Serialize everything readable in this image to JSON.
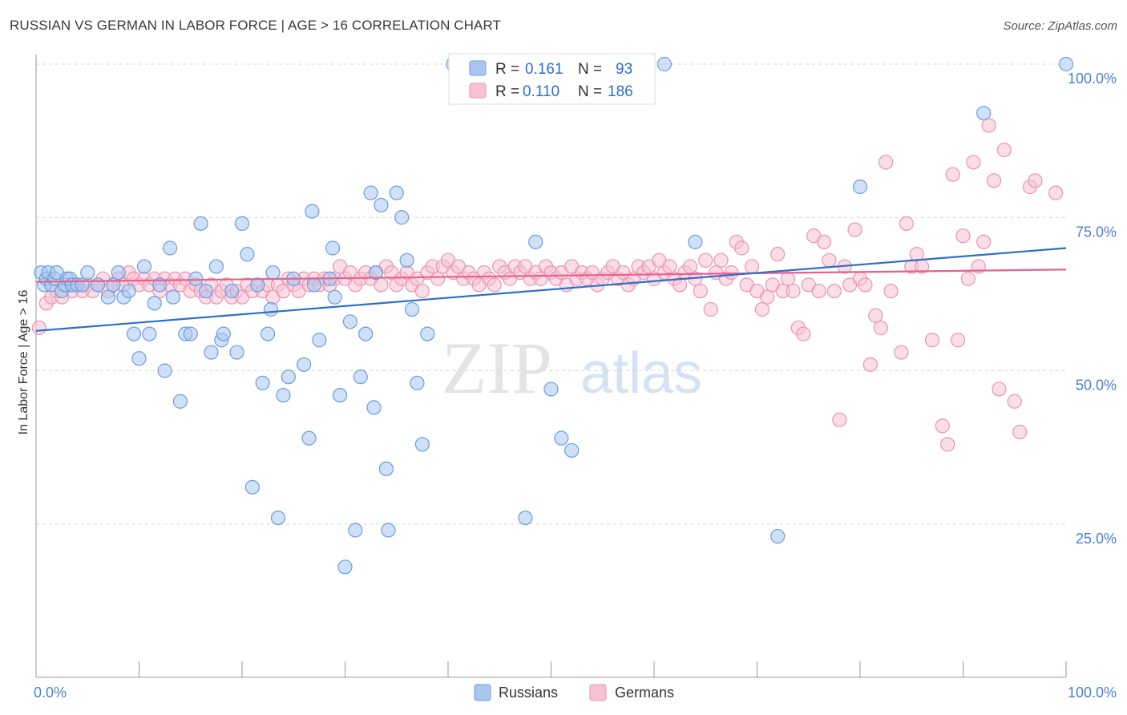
{
  "header": {
    "title": "RUSSIAN VS GERMAN IN LABOR FORCE | AGE > 16 CORRELATION CHART",
    "source": "Source: ZipAtlas.com"
  },
  "watermark": {
    "zip": "ZIP",
    "atlas": "atlas"
  },
  "legend_top": {
    "rows": [
      {
        "r_label": "R =",
        "r_value": "0.161",
        "n_label": "N =",
        "n_value": "93"
      },
      {
        "r_label": "R =",
        "r_value": "0.110",
        "n_label": "N =",
        "n_value": "186"
      }
    ]
  },
  "legend_bottom": {
    "items": [
      "Russians",
      "Germans"
    ]
  },
  "colors": {
    "russians_fill": "#aac6ee",
    "russians_stroke": "#6a9ee0",
    "russians_line": "#2d6fcc",
    "germans_fill": "#f6c3d3",
    "germans_stroke": "#eb93b2",
    "germans_line": "#e8608e",
    "tick_text": "#4a7fd4",
    "grid": "#d8d8d8"
  },
  "chart_data": {
    "type": "scatter",
    "title": "RUSSIAN VS GERMAN IN LABOR FORCE | AGE > 16 CORRELATION CHART",
    "ylabel": "In Labor Force | Age > 16",
    "xlim": [
      0,
      100
    ],
    "ylim": [
      0,
      100
    ],
    "x_tick_labels": [
      "0.0%",
      "100.0%"
    ],
    "y_ticks": [
      25,
      50,
      75,
      100
    ],
    "y_tick_labels": [
      "25.0%",
      "50.0%",
      "75.0%",
      "100.0%"
    ],
    "grid": "horizontal dashed",
    "legend": "top-center and bottom-center",
    "series": [
      {
        "name": "Russians",
        "r": 0.161,
        "n": 93,
        "trend": [
          [
            0,
            56.5
          ],
          [
            100,
            70
          ]
        ],
        "points": [
          [
            0.5,
            66
          ],
          [
            0.8,
            64
          ],
          [
            1,
            65
          ],
          [
            1.2,
            66
          ],
          [
            1.5,
            64
          ],
          [
            1.8,
            65
          ],
          [
            2,
            66
          ],
          [
            2.5,
            63
          ],
          [
            2.8,
            64
          ],
          [
            3,
            65
          ],
          [
            3.3,
            65
          ],
          [
            3.5,
            64
          ],
          [
            4,
            64
          ],
          [
            4.5,
            64
          ],
          [
            5,
            66
          ],
          [
            6,
            64
          ],
          [
            7,
            62
          ],
          [
            7.5,
            64
          ],
          [
            8,
            66
          ],
          [
            8.5,
            62
          ],
          [
            9,
            63
          ],
          [
            9.5,
            56
          ],
          [
            10,
            52
          ],
          [
            10.5,
            67
          ],
          [
            11,
            56
          ],
          [
            11.5,
            61
          ],
          [
            12,
            64
          ],
          [
            12.5,
            50
          ],
          [
            13,
            70
          ],
          [
            13.3,
            62
          ],
          [
            14,
            45
          ],
          [
            14.5,
            56
          ],
          [
            15,
            56
          ],
          [
            15.5,
            65
          ],
          [
            16,
            74
          ],
          [
            16.5,
            63
          ],
          [
            17,
            53
          ],
          [
            17.5,
            67
          ],
          [
            18,
            55
          ],
          [
            18.2,
            56
          ],
          [
            19,
            63
          ],
          [
            19.5,
            53
          ],
          [
            20,
            74
          ],
          [
            20.5,
            69
          ],
          [
            21,
            31
          ],
          [
            21.5,
            64
          ],
          [
            22,
            48
          ],
          [
            22.5,
            56
          ],
          [
            22.8,
            60
          ],
          [
            23,
            66
          ],
          [
            23.5,
            26
          ],
          [
            24,
            46
          ],
          [
            24.5,
            49
          ],
          [
            25,
            65
          ],
          [
            26,
            51
          ],
          [
            26.5,
            39
          ],
          [
            26.8,
            76
          ],
          [
            27,
            64
          ],
          [
            27.5,
            55
          ],
          [
            28.5,
            65
          ],
          [
            28.8,
            70
          ],
          [
            29,
            62
          ],
          [
            29.5,
            46
          ],
          [
            30,
            18
          ],
          [
            30.5,
            58
          ],
          [
            31,
            24
          ],
          [
            31.5,
            49
          ],
          [
            32,
            56
          ],
          [
            32.5,
            79
          ],
          [
            32.8,
            44
          ],
          [
            33,
            66
          ],
          [
            33.5,
            77
          ],
          [
            34,
            34
          ],
          [
            34.2,
            24
          ],
          [
            35,
            79
          ],
          [
            35.5,
            75
          ],
          [
            36,
            68
          ],
          [
            36.5,
            60
          ],
          [
            37,
            48
          ],
          [
            37.5,
            38
          ],
          [
            38,
            56
          ],
          [
            40.5,
            100
          ],
          [
            47.5,
            26
          ],
          [
            48.5,
            71
          ],
          [
            50,
            47
          ],
          [
            51,
            39
          ],
          [
            52,
            37
          ],
          [
            61,
            100
          ],
          [
            64,
            71
          ],
          [
            72,
            23
          ],
          [
            80,
            80
          ],
          [
            92,
            92
          ],
          [
            100,
            100
          ]
        ]
      },
      {
        "name": "Germans",
        "r": 0.11,
        "n": 186,
        "trend": [
          [
            0,
            64.5
          ],
          [
            100,
            66.5
          ]
        ],
        "points": [
          [
            0.3,
            57
          ],
          [
            1,
            61
          ],
          [
            1.5,
            62
          ],
          [
            2,
            63
          ],
          [
            2.5,
            62
          ],
          [
            3,
            64
          ],
          [
            3.5,
            63
          ],
          [
            4,
            64
          ],
          [
            4.5,
            63
          ],
          [
            5,
            64
          ],
          [
            5.5,
            63
          ],
          [
            6,
            64
          ],
          [
            6.5,
            65
          ],
          [
            7,
            63
          ],
          [
            7.5,
            64
          ],
          [
            8,
            65
          ],
          [
            8.5,
            64
          ],
          [
            9,
            66
          ],
          [
            9.5,
            65
          ],
          [
            10,
            64
          ],
          [
            10.5,
            65
          ],
          [
            11,
            64
          ],
          [
            11.5,
            65
          ],
          [
            12,
            63
          ],
          [
            12.5,
            65
          ],
          [
            13,
            64
          ],
          [
            13.5,
            65
          ],
          [
            14,
            64
          ],
          [
            14.5,
            65
          ],
          [
            15,
            63
          ],
          [
            15.5,
            64
          ],
          [
            16,
            63
          ],
          [
            16.5,
            62
          ],
          [
            17,
            64
          ],
          [
            17.5,
            62
          ],
          [
            18,
            63
          ],
          [
            18.5,
            64
          ],
          [
            19,
            62
          ],
          [
            19.5,
            63
          ],
          [
            20,
            62
          ],
          [
            20.5,
            64
          ],
          [
            21,
            63
          ],
          [
            21.5,
            64
          ],
          [
            22,
            63
          ],
          [
            22.5,
            64
          ],
          [
            23,
            62
          ],
          [
            23.5,
            64
          ],
          [
            24,
            63
          ],
          [
            24.5,
            65
          ],
          [
            25,
            64
          ],
          [
            25.5,
            63
          ],
          [
            26,
            65
          ],
          [
            26.5,
            64
          ],
          [
            27,
            65
          ],
          [
            27.5,
            64
          ],
          [
            28,
            65
          ],
          [
            28.5,
            64
          ],
          [
            29,
            65
          ],
          [
            29.5,
            67
          ],
          [
            30,
            65
          ],
          [
            30.5,
            66
          ],
          [
            31,
            64
          ],
          [
            31.5,
            65
          ],
          [
            32,
            66
          ],
          [
            32.5,
            65
          ],
          [
            33,
            66
          ],
          [
            33.5,
            64
          ],
          [
            34,
            67
          ],
          [
            34.5,
            66
          ],
          [
            35,
            64
          ],
          [
            35.5,
            65
          ],
          [
            36,
            66
          ],
          [
            36.5,
            64
          ],
          [
            37,
            65
          ],
          [
            37.5,
            63
          ],
          [
            38,
            66
          ],
          [
            38.5,
            67
          ],
          [
            39,
            65
          ],
          [
            39.5,
            67
          ],
          [
            40,
            68
          ],
          [
            40.5,
            66
          ],
          [
            41,
            67
          ],
          [
            41.5,
            65
          ],
          [
            42,
            66
          ],
          [
            42.5,
            65
          ],
          [
            43,
            64
          ],
          [
            43.5,
            66
          ],
          [
            44,
            65
          ],
          [
            44.5,
            64
          ],
          [
            45,
            67
          ],
          [
            45.5,
            66
          ],
          [
            46,
            65
          ],
          [
            46.5,
            67
          ],
          [
            47,
            66
          ],
          [
            47.5,
            67
          ],
          [
            48,
            65
          ],
          [
            48.5,
            66
          ],
          [
            49,
            65
          ],
          [
            49.5,
            67
          ],
          [
            50,
            66
          ],
          [
            50.5,
            65
          ],
          [
            51,
            66
          ],
          [
            51.5,
            64
          ],
          [
            52,
            67
          ],
          [
            52.5,
            65
          ],
          [
            53,
            66
          ],
          [
            53.5,
            65
          ],
          [
            54,
            66
          ],
          [
            54.5,
            64
          ],
          [
            55,
            65
          ],
          [
            55.5,
            66
          ],
          [
            56,
            67
          ],
          [
            56.5,
            65
          ],
          [
            57,
            66
          ],
          [
            57.5,
            64
          ],
          [
            58,
            65
          ],
          [
            58.5,
            67
          ],
          [
            59,
            66
          ],
          [
            59.5,
            67
          ],
          [
            60,
            65
          ],
          [
            60.5,
            68
          ],
          [
            61,
            66
          ],
          [
            61.5,
            67
          ],
          [
            62,
            65
          ],
          [
            62.5,
            64
          ],
          [
            63,
            66
          ],
          [
            63.5,
            67
          ],
          [
            64,
            65
          ],
          [
            64.5,
            63
          ],
          [
            65,
            68
          ],
          [
            65.5,
            60
          ],
          [
            66,
            66
          ],
          [
            66.5,
            68
          ],
          [
            67,
            65
          ],
          [
            67.5,
            66
          ],
          [
            68,
            71
          ],
          [
            68.5,
            70
          ],
          [
            69,
            64
          ],
          [
            69.5,
            67
          ],
          [
            70,
            63
          ],
          [
            70.5,
            60
          ],
          [
            71,
            62
          ],
          [
            71.5,
            64
          ],
          [
            72,
            69
          ],
          [
            72.5,
            63
          ],
          [
            73,
            65
          ],
          [
            73.5,
            63
          ],
          [
            74,
            57
          ],
          [
            74.5,
            56
          ],
          [
            75,
            64
          ],
          [
            75.5,
            72
          ],
          [
            76,
            63
          ],
          [
            76.5,
            71
          ],
          [
            77,
            68
          ],
          [
            77.5,
            63
          ],
          [
            78,
            42
          ],
          [
            78.5,
            67
          ],
          [
            79,
            64
          ],
          [
            79.5,
            73
          ],
          [
            80,
            65
          ],
          [
            80.5,
            64
          ],
          [
            81,
            51
          ],
          [
            81.5,
            59
          ],
          [
            82,
            57
          ],
          [
            82.5,
            84
          ],
          [
            83,
            63
          ],
          [
            84,
            53
          ],
          [
            84.5,
            74
          ],
          [
            85,
            67
          ],
          [
            85.5,
            69
          ],
          [
            86,
            67
          ],
          [
            87,
            55
          ],
          [
            88,
            41
          ],
          [
            88.5,
            38
          ],
          [
            89,
            82
          ],
          [
            89.5,
            55
          ],
          [
            90,
            72
          ],
          [
            90.5,
            65
          ],
          [
            91,
            84
          ],
          [
            91.5,
            67
          ],
          [
            92,
            71
          ],
          [
            92.5,
            90
          ],
          [
            93,
            81
          ],
          [
            93.5,
            47
          ],
          [
            94,
            86
          ],
          [
            95,
            45
          ],
          [
            95.5,
            40
          ],
          [
            96.5,
            80
          ],
          [
            97,
            81
          ],
          [
            99,
            79
          ]
        ]
      }
    ]
  }
}
